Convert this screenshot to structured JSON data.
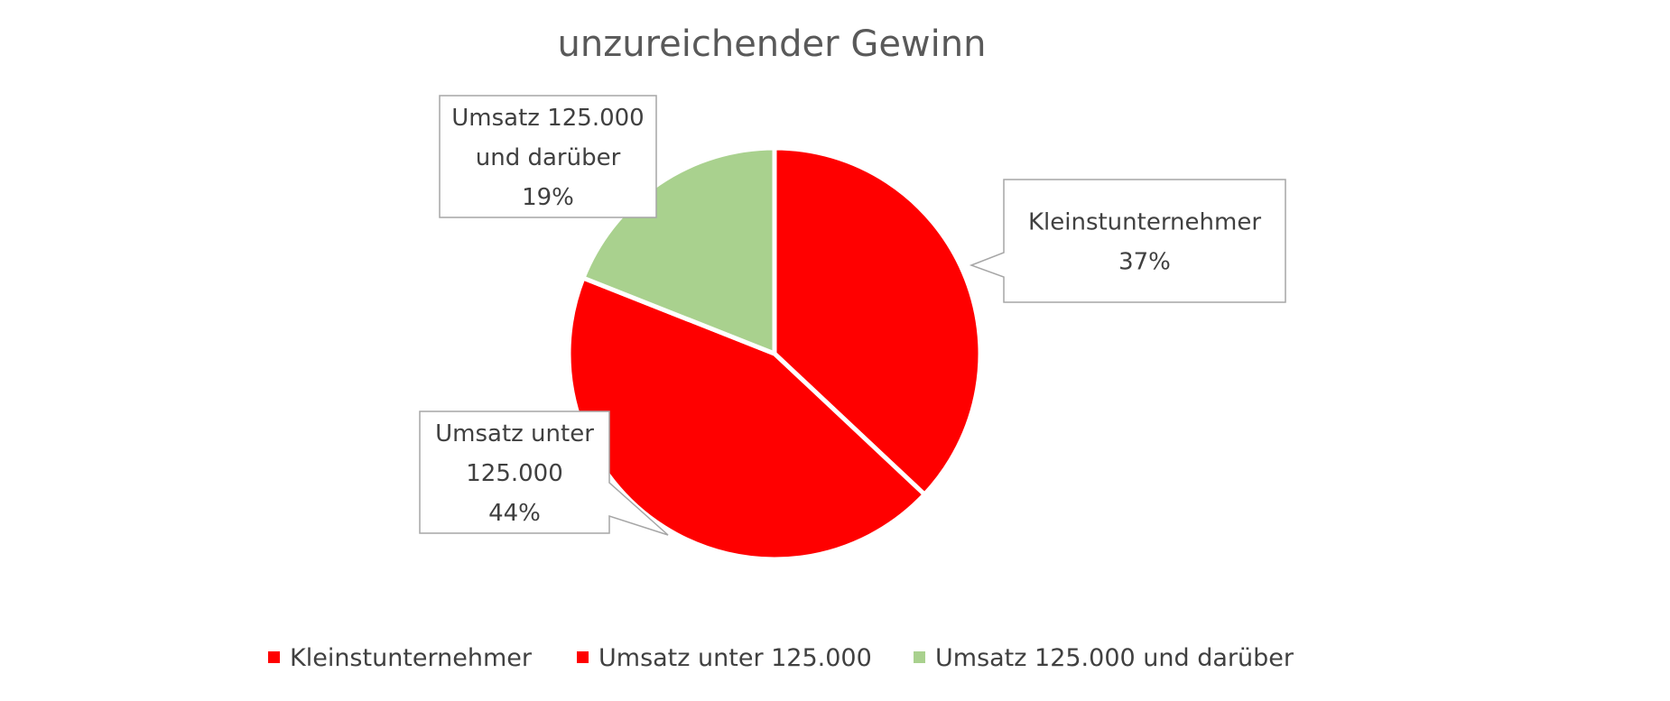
{
  "chart_data": {
    "type": "pie",
    "title": "unzureichender Gewinn",
    "legend_position": "bottom",
    "slices": [
      {
        "label": "Kleinstunternehmer",
        "value": 37,
        "display": "37%",
        "color": "#ff0000",
        "callout_lines": [
          "Kleinstunternehmer",
          "37%"
        ]
      },
      {
        "label": "Umsatz unter 125.000",
        "value": 44,
        "display": "44%",
        "color": "#ff0000",
        "callout_lines": [
          "Umsatz unter",
          "125.000",
          "44%"
        ]
      },
      {
        "label": "Umsatz 125.000 und darüber",
        "value": 19,
        "display": "19%",
        "color": "#a9d18e",
        "callout_lines": [
          "Umsatz 125.000",
          "und darüber",
          "19%"
        ]
      }
    ]
  }
}
